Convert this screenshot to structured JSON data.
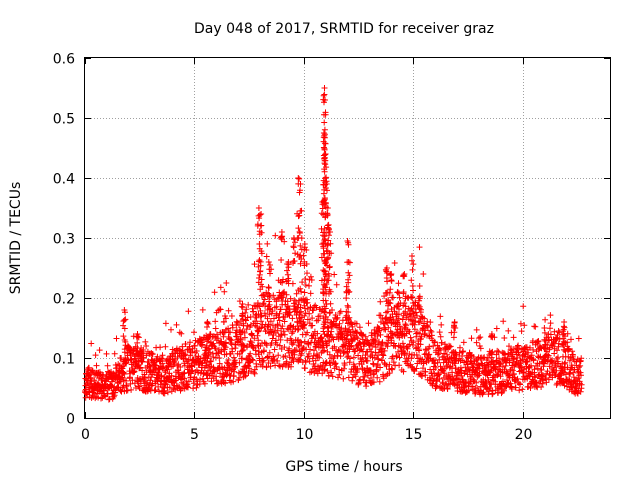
{
  "chart_data": {
    "type": "scatter",
    "title": "Day 048 of 2017, SRMTID for receiver graz",
    "xlabel": "GPS time / hours",
    "ylabel": "SRMTID / TECUs",
    "xlim": [
      0,
      24
    ],
    "ylim": [
      0,
      0.6
    ],
    "xticks": [
      0,
      5,
      10,
      15,
      20
    ],
    "xtick_labels": [
      "0",
      "5",
      "10",
      "15",
      "20"
    ],
    "yticks": [
      0,
      0.1,
      0.2,
      0.3,
      0.4,
      0.5,
      0.6
    ],
    "ytick_labels": [
      "0",
      "0.1",
      "0.2",
      "0.3",
      "0.4",
      "0.5",
      "0.6"
    ],
    "grid": true,
    "marker": "+",
    "color": "#ff0000",
    "x_range": [
      0,
      22.7
    ],
    "series": [
      {
        "name": "SRMTID",
        "samples_per_hour": 120,
        "baseline": [
          [
            0.0,
            0.06
          ],
          [
            0.5,
            0.055
          ],
          [
            1.0,
            0.05
          ],
          [
            1.5,
            0.065
          ],
          [
            2.0,
            0.085
          ],
          [
            2.5,
            0.085
          ],
          [
            3.0,
            0.075
          ],
          [
            3.5,
            0.07
          ],
          [
            4.0,
            0.075
          ],
          [
            4.5,
            0.085
          ],
          [
            5.0,
            0.09
          ],
          [
            5.5,
            0.095
          ],
          [
            6.0,
            0.1
          ],
          [
            6.5,
            0.105
          ],
          [
            7.0,
            0.11
          ],
          [
            7.5,
            0.12
          ],
          [
            8.0,
            0.14
          ],
          [
            8.5,
            0.15
          ],
          [
            9.0,
            0.15
          ],
          [
            9.5,
            0.145
          ],
          [
            10.0,
            0.14
          ],
          [
            10.5,
            0.13
          ],
          [
            11.0,
            0.13
          ],
          [
            11.5,
            0.12
          ],
          [
            12.0,
            0.115
          ],
          [
            12.5,
            0.1
          ],
          [
            13.0,
            0.095
          ],
          [
            13.5,
            0.11
          ],
          [
            14.0,
            0.14
          ],
          [
            14.5,
            0.14
          ],
          [
            15.0,
            0.14
          ],
          [
            15.5,
            0.12
          ],
          [
            16.0,
            0.09
          ],
          [
            16.5,
            0.085
          ],
          [
            17.0,
            0.08
          ],
          [
            17.5,
            0.075
          ],
          [
            18.0,
            0.07
          ],
          [
            18.5,
            0.07
          ],
          [
            19.0,
            0.075
          ],
          [
            19.5,
            0.08
          ],
          [
            20.0,
            0.085
          ],
          [
            20.5,
            0.09
          ],
          [
            21.0,
            0.095
          ],
          [
            21.5,
            0.1
          ],
          [
            22.0,
            0.09
          ],
          [
            22.5,
            0.07
          ],
          [
            22.7,
            0.065
          ]
        ],
        "peaks": [
          [
            1.8,
            0.18
          ],
          [
            2.4,
            0.14
          ],
          [
            5.6,
            0.16
          ],
          [
            6.4,
            0.17
          ],
          [
            7.2,
            0.19
          ],
          [
            7.95,
            0.35
          ],
          [
            8.05,
            0.34
          ],
          [
            8.4,
            0.26
          ],
          [
            9.0,
            0.31
          ],
          [
            9.3,
            0.26
          ],
          [
            9.55,
            0.3
          ],
          [
            9.75,
            0.4
          ],
          [
            9.85,
            0.39
          ],
          [
            10.05,
            0.29
          ],
          [
            10.85,
            0.36
          ],
          [
            10.92,
            0.475
          ],
          [
            10.95,
            0.55
          ],
          [
            10.97,
            0.53
          ],
          [
            11.0,
            0.44
          ],
          [
            11.05,
            0.39
          ],
          [
            11.1,
            0.35
          ],
          [
            11.2,
            0.31
          ],
          [
            12.0,
            0.295
          ],
          [
            12.05,
            0.26
          ],
          [
            13.8,
            0.25
          ],
          [
            14.0,
            0.24
          ],
          [
            14.3,
            0.21
          ],
          [
            14.6,
            0.24
          ],
          [
            14.95,
            0.27
          ],
          [
            15.3,
            0.22
          ],
          [
            16.9,
            0.16
          ],
          [
            18.6,
            0.14
          ],
          [
            21.0,
            0.15
          ],
          [
            21.9,
            0.16
          ]
        ]
      }
    ]
  }
}
